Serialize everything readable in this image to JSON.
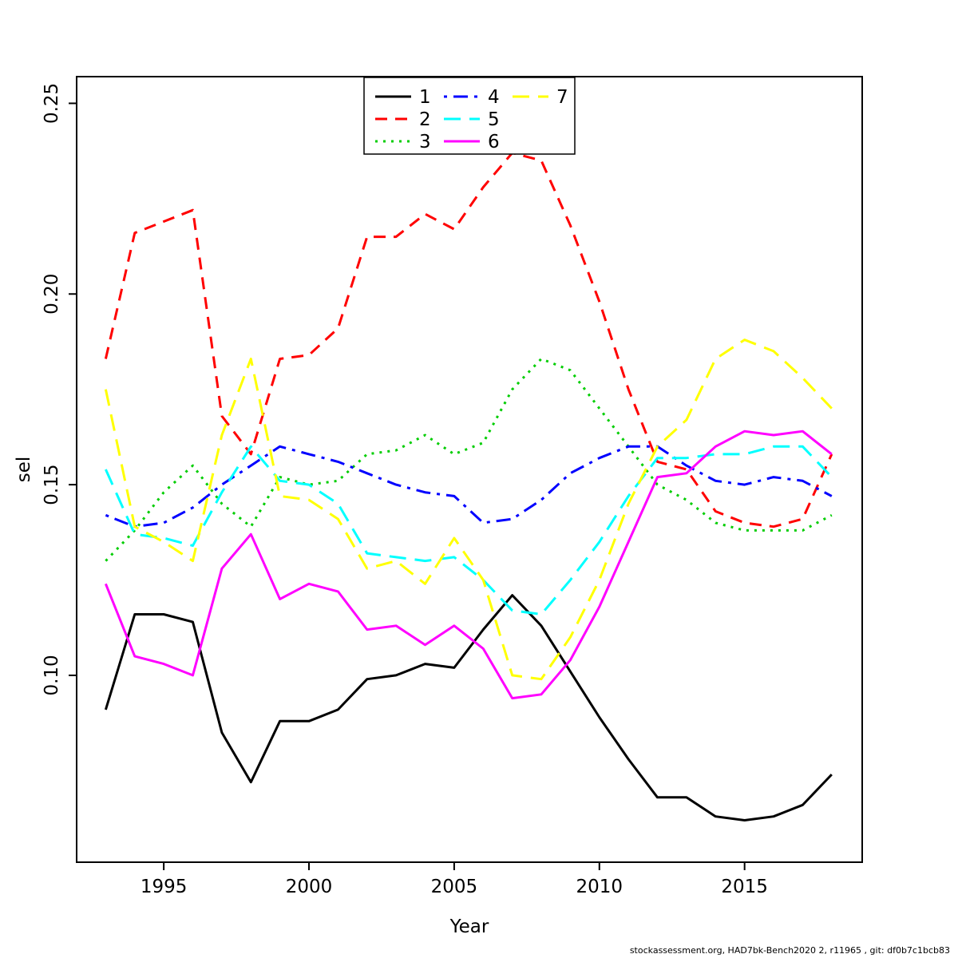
{
  "chart_data": {
    "type": "line",
    "title": "",
    "xlabel": "Year",
    "ylabel": "sel",
    "xlim": [
      1992,
      2019.05
    ],
    "ylim": [
      0.051,
      0.257
    ],
    "grid": false,
    "legend_position": "top-center",
    "xticks": [
      {
        "value": 1995,
        "label": "1995"
      },
      {
        "value": 2000,
        "label": "2000"
      },
      {
        "value": 2005,
        "label": "2005"
      },
      {
        "value": 2010,
        "label": "2010"
      },
      {
        "value": 2015,
        "label": "2015"
      }
    ],
    "yticks": [
      {
        "value": 0.1,
        "label": "0.10"
      },
      {
        "value": 0.15,
        "label": "0.15"
      },
      {
        "value": 0.2,
        "label": "0.20"
      },
      {
        "value": 0.25,
        "label": "0.25"
      }
    ],
    "x": [
      1993,
      1994,
      1995,
      1996,
      1997,
      1998,
      1999,
      2000,
      2001,
      2002,
      2003,
      2004,
      2005,
      2006,
      2007,
      2008,
      2009,
      2010,
      2011,
      2012,
      2013,
      2014,
      2015,
      2016,
      2017,
      2018
    ],
    "series": [
      {
        "name": "1",
        "color": "#000000",
        "linetype": "solid",
        "values": [
          0.091,
          0.116,
          0.116,
          0.114,
          0.085,
          0.072,
          0.088,
          0.088,
          0.091,
          0.099,
          0.1,
          0.103,
          0.102,
          0.112,
          0.121,
          0.113,
          0.101,
          0.089,
          0.078,
          0.068,
          0.068,
          0.063,
          0.062,
          0.063,
          0.066,
          0.074
        ]
      },
      {
        "name": "2",
        "color": "#FF0000",
        "linetype": "dashed",
        "values": [
          0.183,
          0.216,
          0.219,
          0.222,
          0.168,
          0.158,
          0.183,
          0.184,
          0.191,
          0.215,
          0.215,
          0.221,
          0.217,
          0.228,
          0.237,
          0.235,
          0.218,
          0.198,
          0.175,
          0.156,
          0.154,
          0.143,
          0.14,
          0.139,
          0.141,
          0.158
        ]
      },
      {
        "name": "3",
        "color": "#00CD00",
        "linetype": "dotted",
        "values": [
          0.13,
          0.138,
          0.148,
          0.155,
          0.145,
          0.139,
          0.152,
          0.15,
          0.151,
          0.158,
          0.159,
          0.163,
          0.158,
          0.161,
          0.175,
          0.183,
          0.18,
          0.17,
          0.16,
          0.15,
          0.146,
          0.14,
          0.138,
          0.138,
          0.138,
          0.142
        ]
      },
      {
        "name": "4",
        "color": "#0000FF",
        "linetype": "dotdash",
        "values": [
          0.142,
          0.139,
          0.14,
          0.144,
          0.15,
          0.155,
          0.16,
          0.158,
          0.156,
          0.153,
          0.15,
          0.148,
          0.147,
          0.14,
          0.141,
          0.146,
          0.153,
          0.157,
          0.16,
          0.16,
          0.155,
          0.151,
          0.15,
          0.152,
          0.151,
          0.147
        ]
      },
      {
        "name": "5",
        "color": "#00FFFF",
        "linetype": "longdash",
        "values": [
          0.154,
          0.137,
          0.136,
          0.134,
          0.148,
          0.16,
          0.151,
          0.15,
          0.145,
          0.132,
          0.131,
          0.13,
          0.131,
          0.125,
          0.117,
          0.116,
          0.125,
          0.135,
          0.147,
          0.157,
          0.157,
          0.158,
          0.158,
          0.16,
          0.16,
          0.152
        ]
      },
      {
        "name": "6",
        "color": "#FF00FF",
        "linetype": "solid",
        "values": [
          0.124,
          0.105,
          0.103,
          0.1,
          0.128,
          0.137,
          0.12,
          0.124,
          0.122,
          0.112,
          0.113,
          0.108,
          0.113,
          0.107,
          0.094,
          0.095,
          0.104,
          0.118,
          0.135,
          0.152,
          0.153,
          0.16,
          0.164,
          0.163,
          0.164,
          0.158
        ]
      },
      {
        "name": "7",
        "color": "#FFFF00",
        "linetype": "longdash",
        "values": [
          0.175,
          0.139,
          0.135,
          0.13,
          0.163,
          0.183,
          0.147,
          0.146,
          0.141,
          0.128,
          0.13,
          0.124,
          0.136,
          0.125,
          0.1,
          0.099,
          0.11,
          0.125,
          0.145,
          0.16,
          0.167,
          0.183,
          0.188,
          0.185,
          0.178,
          0.17
        ]
      }
    ],
    "legend_labels": [
      "1",
      "2",
      "3",
      "4",
      "5",
      "6",
      "7"
    ]
  },
  "footer": {
    "text": "stockassessment.org, HAD7bk-Bench2020 2, r11965 , git: df0b7c1bcb83"
  }
}
